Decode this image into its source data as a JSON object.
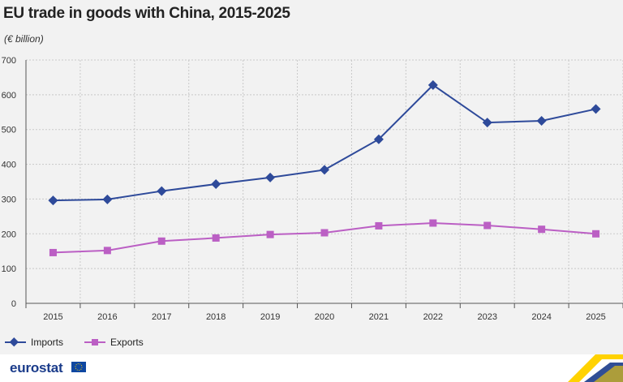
{
  "header": {
    "title": "EU trade in goods with China, 2015-2025",
    "subtitle": "(€ billion)"
  },
  "footer": {
    "brand": "eurostat"
  },
  "colors": {
    "imports": "#2e4a9a",
    "exports": "#bb5fc4",
    "grid": "#c9c9c9",
    "background": "#f2f2f2"
  },
  "chart_data": {
    "type": "line",
    "categories": [
      "2015",
      "2016",
      "2017",
      "2018",
      "2019",
      "2020",
      "2021",
      "2022",
      "2023",
      "2024",
      "2025"
    ],
    "series": [
      {
        "name": "Imports",
        "marker": "diamond",
        "values": [
          296,
          299,
          323,
          343,
          362,
          384,
          472,
          628,
          520,
          525,
          559
        ]
      },
      {
        "name": "Exports",
        "marker": "square",
        "values": [
          146,
          152,
          179,
          188,
          198,
          203,
          223,
          231,
          224,
          213,
          200
        ]
      }
    ],
    "yticks": [
      0,
      100,
      200,
      300,
      400,
      500,
      600,
      700
    ],
    "ylim": [
      0,
      700
    ],
    "grid": true,
    "legend": "bottom-left"
  }
}
